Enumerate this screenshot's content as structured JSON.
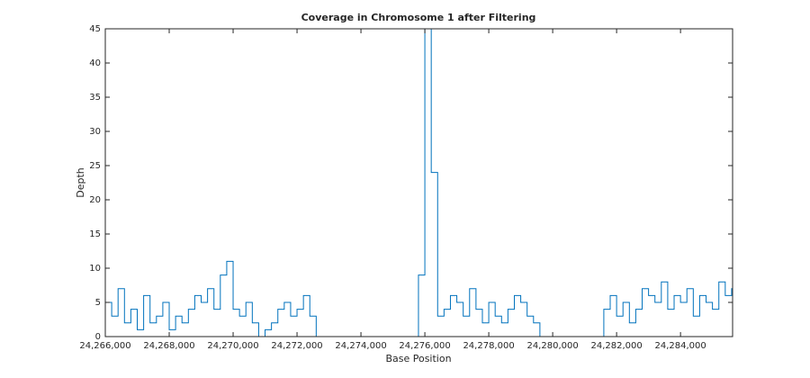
{
  "chart_data": {
    "type": "stairs",
    "title": "Coverage in Chromosome 1 after Filtering",
    "xlabel": "Base Position",
    "ylabel": "Depth",
    "x": [
      24266000,
      24266200,
      24266400,
      24266600,
      24266800,
      24267000,
      24267200,
      24267400,
      24267600,
      24267800,
      24268000,
      24268200,
      24268400,
      24268600,
      24268800,
      24269000,
      24269200,
      24269400,
      24269600,
      24269800,
      24270000,
      24270200,
      24270400,
      24270600,
      24270800,
      24271000,
      24271200,
      24271400,
      24271600,
      24271800,
      24272000,
      24272200,
      24272400,
      24272600,
      24272800,
      24273000,
      24273200,
      24273400,
      24273600,
      24273800,
      24274000,
      24274200,
      24274400,
      24274600,
      24274800,
      24275000,
      24275200,
      24275400,
      24275600,
      24275800,
      24276000,
      24276200,
      24276400,
      24276600,
      24276800,
      24277000,
      24277200,
      24277400,
      24277600,
      24277800,
      24278000,
      24278200,
      24278400,
      24278600,
      24278800,
      24279000,
      24279200,
      24279400,
      24279600,
      24279800,
      24280000,
      24280200,
      24280400,
      24280600,
      24280800,
      24281000,
      24281200,
      24281400,
      24281600,
      24281800,
      24282000,
      24282200,
      24282400,
      24282600,
      24282800,
      24283000,
      24283200,
      24283400,
      24283600,
      24283800,
      24284000,
      24284200,
      24284400,
      24284600,
      24284800,
      24285000,
      24285200,
      24285400,
      24285600
    ],
    "series": [
      {
        "name": "Depth",
        "color": "#0072bd",
        "values": [
          5,
          3,
          7,
          2,
          4,
          1,
          6,
          2,
          3,
          5,
          1,
          3,
          2,
          4,
          6,
          5,
          7,
          4,
          9,
          11,
          4,
          3,
          5,
          2,
          0,
          1,
          2,
          4,
          5,
          3,
          4,
          6,
          3,
          0,
          0,
          0,
          0,
          0,
          0,
          0,
          0,
          0,
          0,
          0,
          0,
          0,
          0,
          0,
          0,
          9,
          45,
          24,
          3,
          4,
          6,
          5,
          3,
          7,
          4,
          2,
          5,
          3,
          2,
          4,
          6,
          5,
          3,
          2,
          0,
          0,
          0,
          0,
          0,
          0,
          0,
          0,
          0,
          0,
          4,
          6,
          3,
          5,
          2,
          4,
          7,
          6,
          5,
          8,
          4,
          6,
          5,
          7,
          3,
          6,
          5,
          4,
          8,
          6,
          7
        ]
      }
    ],
    "xlim": [
      24266000,
      24285630
    ],
    "ylim": [
      0,
      45
    ],
    "xticks": [
      {
        "value": 24266000,
        "label": "24,266,000"
      },
      {
        "value": 24268000,
        "label": "24,268,000"
      },
      {
        "value": 24270000,
        "label": "24,270,000"
      },
      {
        "value": 24272000,
        "label": "24,272,000"
      },
      {
        "value": 24274000,
        "label": "24,274,000"
      },
      {
        "value": 24276000,
        "label": "24,276,000"
      },
      {
        "value": 24278000,
        "label": "24,278,000"
      },
      {
        "value": 24280000,
        "label": "24,280,000"
      },
      {
        "value": 24282000,
        "label": "24,282,000"
      },
      {
        "value": 24284000,
        "label": "24,284,000"
      }
    ],
    "yticks": [
      0,
      5,
      10,
      15,
      20,
      25,
      30,
      35,
      40,
      45
    ],
    "grid": false
  }
}
